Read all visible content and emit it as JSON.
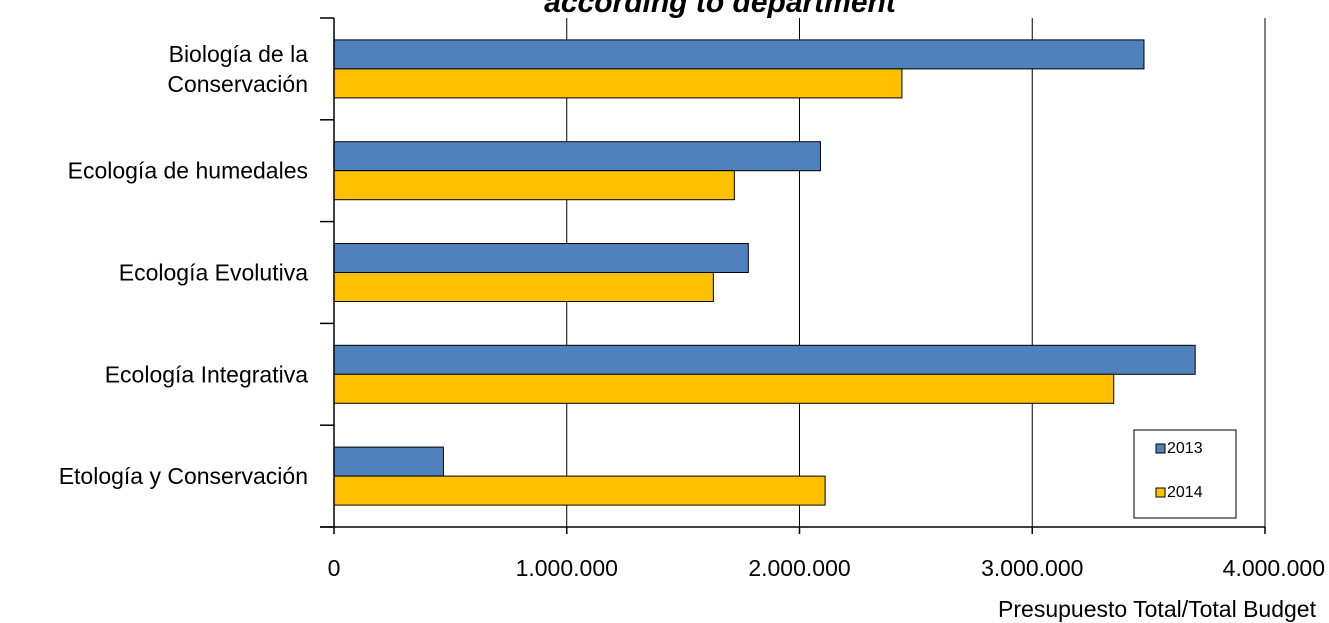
{
  "chart_data": {
    "type": "bar",
    "orientation": "horizontal",
    "title": "according to department",
    "xlabel": "Presupuesto Total/Total Budget",
    "ylabel": "",
    "xlim": [
      0,
      4000000
    ],
    "xticks": [
      0,
      1000000,
      2000000,
      3000000,
      4000000
    ],
    "xtick_labels": [
      "0",
      "1.000.000",
      "2.000.000",
      "3.000.000",
      "4.000.000"
    ],
    "grid": "vertical",
    "legend_position": "bottom-right",
    "categories": [
      [
        "Biología de la",
        "Conservación"
      ],
      [
        "Ecología de humedales"
      ],
      [
        "Ecología Evolutiva"
      ],
      [
        "Ecología Integrativa"
      ],
      [
        "Etología y Conservación"
      ]
    ],
    "series": [
      {
        "name": "2013",
        "color": "#4F81BD",
        "values": [
          3480000,
          2090000,
          1780000,
          3700000,
          470000
        ]
      },
      {
        "name": "2014",
        "color": "#FFC000",
        "values": [
          2440000,
          1720000,
          1630000,
          3350000,
          2110000
        ]
      }
    ]
  }
}
